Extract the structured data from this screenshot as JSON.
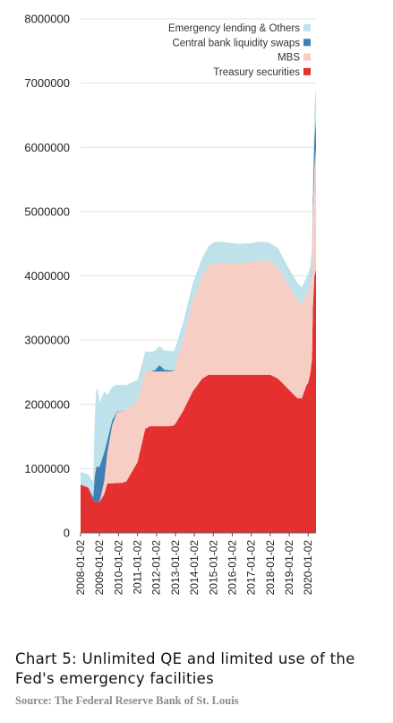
{
  "colors": {
    "emergency": "#bfe1ea",
    "swaps": "#3f7fb3",
    "mbs": "#f6cec4",
    "treasury": "#e4302f"
  },
  "caption": {
    "title": "Chart 5: Unlimited QE and limited use of the Fed's emergency facilities",
    "source": "Source: The Federal Reserve Bank of St. Louis"
  },
  "chart_data": {
    "type": "area",
    "stacked": true,
    "ylim": [
      0,
      8000000
    ],
    "y_ticks": [
      0,
      1000000,
      2000000,
      3000000,
      4000000,
      5000000,
      6000000,
      7000000,
      8000000
    ],
    "y_tick_labels": [
      "0",
      "1000000",
      "2000000",
      "3000000",
      "4000000",
      "5000000",
      "6000000",
      "7000000",
      "8000000"
    ],
    "x_tick_labels": [
      "2008-01-02",
      "2009-01-02",
      "2010-01-02",
      "2011-01-02",
      "2012-01-02",
      "2013-01-02",
      "2014-01-02",
      "2015-01-02",
      "2016-01-02",
      "2017-01-02",
      "2018-01-02",
      "2019-01-02",
      "2020-01-02"
    ],
    "x_range": [
      "2008-01-02",
      "2020-06-01"
    ],
    "grid": true,
    "legend_position": "top-right",
    "x": [
      "2008-01-02",
      "2008-06-01",
      "2008-09-01",
      "2008-10-01",
      "2008-11-01",
      "2008-12-01",
      "2009-01-02",
      "2009-04-01",
      "2009-06-01",
      "2009-09-01",
      "2009-12-01",
      "2010-03-01",
      "2010-06-01",
      "2011-01-02",
      "2011-06-01",
      "2011-09-01",
      "2011-12-01",
      "2012-03-01",
      "2012-06-01",
      "2012-09-01",
      "2012-12-01",
      "2013-01-02",
      "2013-06-01",
      "2013-12-01",
      "2014-06-01",
      "2014-10-01",
      "2015-01-02",
      "2015-06-01",
      "2016-01-02",
      "2016-06-01",
      "2017-01-02",
      "2017-06-01",
      "2017-10-01",
      "2018-01-02",
      "2018-06-01",
      "2018-12-01",
      "2019-06-01",
      "2019-09-01",
      "2019-12-01",
      "2020-01-02",
      "2020-02-15",
      "2020-03-15",
      "2020-04-01",
      "2020-05-01",
      "2020-06-01"
    ],
    "series": [
      {
        "name": "Treasury securities",
        "values": [
          750000,
          700000,
          500000,
          480000,
          480000,
          480000,
          480000,
          600000,
          770000,
          770000,
          776000,
          776000,
          800000,
          1100000,
          1620000,
          1660000,
          1660000,
          1660000,
          1660000,
          1660000,
          1670000,
          1700000,
          1900000,
          2200000,
          2400000,
          2460000,
          2460000,
          2460000,
          2460000,
          2460000,
          2460000,
          2460000,
          2460000,
          2460000,
          2400000,
          2250000,
          2100000,
          2090000,
          2300000,
          2330000,
          2500000,
          2700000,
          3500000,
          4000000,
          4100000
        ]
      },
      {
        "name": "MBS",
        "values": [
          0,
          0,
          0,
          0,
          0,
          0,
          0,
          200000,
          480000,
          900000,
          1100000,
          1120000,
          1120000,
          950000,
          900000,
          860000,
          850000,
          850000,
          850000,
          850000,
          850000,
          900000,
          1100000,
          1400000,
          1600000,
          1700000,
          1740000,
          1740000,
          1740000,
          1740000,
          1760000,
          1780000,
          1780000,
          1760000,
          1740000,
          1620000,
          1530000,
          1470000,
          1400000,
          1400000,
          1360000,
          1380000,
          1450000,
          1700000,
          1900000
        ]
      },
      {
        "name": "Central bank liquidity swaps",
        "values": [
          0,
          5000,
          50000,
          400000,
          550000,
          550000,
          550000,
          450000,
          200000,
          80000,
          10000,
          5000,
          0,
          0,
          0,
          0,
          20000,
          100000,
          30000,
          20000,
          10000,
          5000,
          0,
          0,
          0,
          0,
          0,
          0,
          0,
          0,
          0,
          0,
          0,
          0,
          0,
          0,
          0,
          0,
          0,
          0,
          0,
          50000,
          200000,
          440000,
          400000
        ]
      },
      {
        "name": "Emergency lending & Others",
        "values": [
          200000,
          200000,
          250000,
          900000,
          1200000,
          1200000,
          1000000,
          950000,
          700000,
          520000,
          420000,
          400000,
          380000,
          330000,
          300000,
          300000,
          300000,
          300000,
          300000,
          300000,
          300000,
          280000,
          280000,
          280000,
          280000,
          300000,
          320000,
          330000,
          310000,
          300000,
          290000,
          290000,
          290000,
          290000,
          290000,
          280000,
          270000,
          260000,
          280000,
          300000,
          300000,
          300000,
          300000,
          460000,
          560000
        ]
      }
    ]
  },
  "legend": {
    "items": [
      {
        "label": "Emergency lending & Others",
        "color": "#bfe1ea"
      },
      {
        "label": "Central bank liquidity swaps",
        "color": "#3f7fb3"
      },
      {
        "label": "MBS",
        "color": "#f6cec4"
      },
      {
        "label": "Treasury securities",
        "color": "#e4302f"
      }
    ]
  }
}
